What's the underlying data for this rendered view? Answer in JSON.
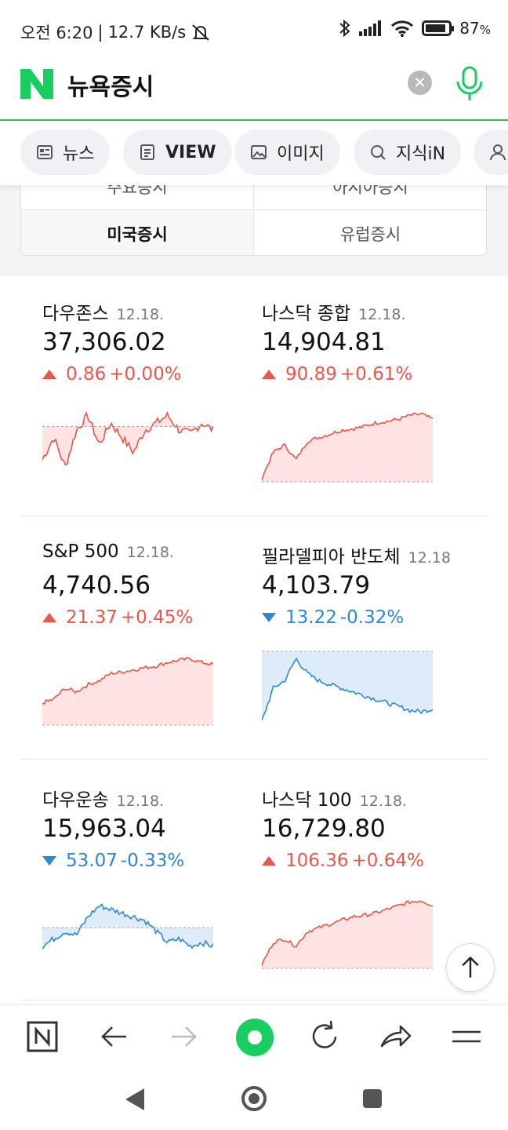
{
  "status_bar": {
    "time": "오전 6:20",
    "network_speed": "12.7 KB/s",
    "battery": "87",
    "battery_unit": "%",
    "battery_level": 0.87,
    "icons": [
      "mute-notification-icon",
      "bluetooth-icon",
      "signal-icon",
      "wifi-icon",
      "battery-icon"
    ]
  },
  "search": {
    "query": "뉴욕증시",
    "clear_icon": "close-icon",
    "mic_icon": "microphone-icon"
  },
  "tabs": [
    {
      "label": "뉴스",
      "icon": "news-icon"
    },
    {
      "label": "VIEW",
      "icon": "document-icon"
    },
    {
      "label": "이미지",
      "icon": "image-icon"
    },
    {
      "label": "지식iN",
      "icon": "search-q-icon"
    },
    {
      "label": "",
      "icon": "person-icon"
    }
  ],
  "region_tabs": {
    "top_left": "주요증시",
    "top_right": "아시아증시",
    "selected": "미국증시",
    "other": "유럽증시"
  },
  "stocks": [
    {
      "name": "다우존스",
      "date": "12.18.",
      "value": "37,306.02",
      "direction": "up",
      "change": "0.86",
      "percent": "+0.00%"
    },
    {
      "name": "나스닥 종합",
      "date": "12.18.",
      "value": "14,904.81",
      "direction": "up",
      "change": "90.89",
      "percent": "+0.61%"
    },
    {
      "name": "S&P 500",
      "date": "12.18.",
      "value": "4,740.56",
      "direction": "up",
      "change": "21.37",
      "percent": "+0.45%"
    },
    {
      "name": "필라델피아 반도체",
      "date": "12.18",
      "value": "4,103.79",
      "direction": "down",
      "change": "13.22",
      "percent": "-0.32%"
    },
    {
      "name": "다우운송",
      "date": "12.18.",
      "value": "15,963.04",
      "direction": "down",
      "change": "53.07",
      "percent": "-0.33%"
    },
    {
      "name": "나스닥 100",
      "date": "12.18.",
      "value": "16,729.80",
      "direction": "up",
      "change": "106.36",
      "percent": "+0.64%"
    }
  ],
  "colors": {
    "up": "#e9564a",
    "down": "#2e87d6",
    "up_fill": "#fde3e1",
    "down_fill": "#deecfa",
    "brand_green": "#19ce60"
  },
  "toolbar": {
    "icons": [
      "naver-home-icon",
      "back-arrow-icon",
      "forward-arrow-icon",
      "green-home-icon",
      "refresh-icon",
      "share-icon",
      "menu-icon"
    ]
  },
  "system_nav": {
    "icons": [
      "back-triangle-icon",
      "home-circle-icon",
      "recent-apps-icon"
    ]
  }
}
